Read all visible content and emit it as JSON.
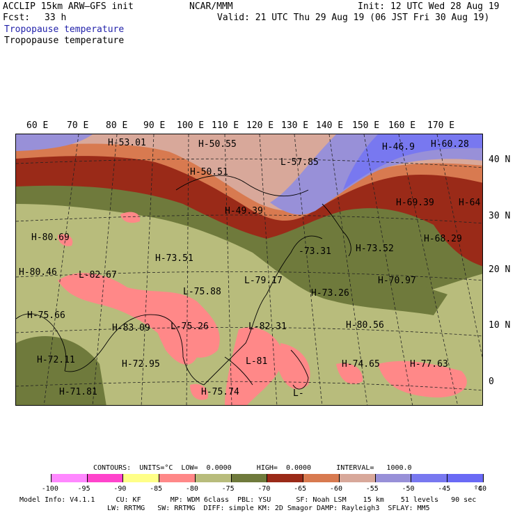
{
  "header": {
    "model": "ACCLIP 15km ARW–GFS init",
    "center": "NCAR/MMM",
    "init": "Init: 12 UTC Wed 28 Aug 19",
    "fcst_label": "Fcst:",
    "fcst_value": "33 h",
    "valid": "Valid: 21 UTC Thu 29 Aug 19 (06 JST Fri 30 Aug 19)",
    "field_title_1": "Tropopause temperature",
    "field_title_2": "Tropopause temperature"
  },
  "axes": {
    "lon_labels": [
      "60 E",
      "70 E",
      "80 E",
      "90 E",
      "100 E",
      "110 E",
      "120 E",
      "130 E",
      "140 E",
      "150 E",
      "160 E",
      "170 E"
    ],
    "lat_labels": [
      "40 N",
      "30 N",
      "20 N",
      "10 N",
      "0"
    ]
  },
  "map_labels": [
    {
      "mark": "H",
      "value": "-53.01"
    },
    {
      "mark": "H",
      "value": "-50.55"
    },
    {
      "mark": "H",
      "value": "-50.51"
    },
    {
      "mark": "L",
      "value": "-57.85"
    },
    {
      "mark": "H",
      "value": "-46.9"
    },
    {
      "mark": "H",
      "value": "-60.28"
    },
    {
      "mark": "H",
      "value": "-49.39"
    },
    {
      "mark": "H",
      "value": "-69.39"
    },
    {
      "mark": "H",
      "value": "-64"
    },
    {
      "mark": "H",
      "value": "-80.69"
    },
    {
      "mark": "H",
      "value": "-73.51"
    },
    {
      "mark": "L",
      "value": "-82.67"
    },
    {
      "mark": "H",
      "value": "-80.46"
    },
    {
      "mark": "H",
      "value": "-73.52"
    },
    {
      "mark": "H",
      "value": "-68.29"
    },
    {
      "mark": "L",
      "value": "-79.17"
    },
    {
      "mark": "",
      "value": "-73.31"
    },
    {
      "mark": "L",
      "value": "-75.88"
    },
    {
      "mark": "H",
      "value": "-70.97"
    },
    {
      "mark": "H",
      "value": "-73.26"
    },
    {
      "mark": "H",
      "value": "-75.66"
    },
    {
      "mark": "H",
      "value": "-83.09"
    },
    {
      "mark": "L",
      "value": "-75.26"
    },
    {
      "mark": "L",
      "value": "-82.31"
    },
    {
      "mark": "H",
      "value": "-80.56"
    },
    {
      "mark": "H",
      "value": "-72.11"
    },
    {
      "mark": "H",
      "value": "-72.95"
    },
    {
      "mark": "L",
      "value": "-81"
    },
    {
      "mark": "H",
      "value": "-74.65"
    },
    {
      "mark": "H",
      "value": "-77.63"
    },
    {
      "mark": "H",
      "value": "-71.81"
    },
    {
      "mark": "H",
      "value": "-75.74"
    },
    {
      "mark": "L",
      "value": "-"
    }
  ],
  "contours": {
    "line": "CONTOURS:  UNITS=°C  LOW=  0.0000      HIGH=  0.0000      INTERVAL=   1000.0"
  },
  "colorbar": {
    "labels": [
      "-100",
      "-95",
      "-90",
      "-85",
      "-80",
      "-75",
      "-70",
      "-65",
      "-60",
      "-55",
      "-50",
      "-45",
      "-40",
      "°C"
    ],
    "colors": [
      "#ffffff",
      "#ff88ff",
      "#ff44cc",
      "#ffff88",
      "#ff8888",
      "#b8bc7c",
      "#6f7a3c",
      "#9a2a18",
      "#d87a50",
      "#d8a89a",
      "#9890d8",
      "#7878f0",
      "#6a6af5"
    ]
  },
  "footer": {
    "line1": "Model Info: V4.1.1     CU: KF       MP: WDM 6class  PBL: YSU      SF: Noah LSM    15 km    51 levels   90 sec",
    "line2": "LW: RRTMG   SW: RRTMG  DIFF: simple KM: 2D Smagor DAMP: Rayleigh3  SFLAY: MM5"
  }
}
